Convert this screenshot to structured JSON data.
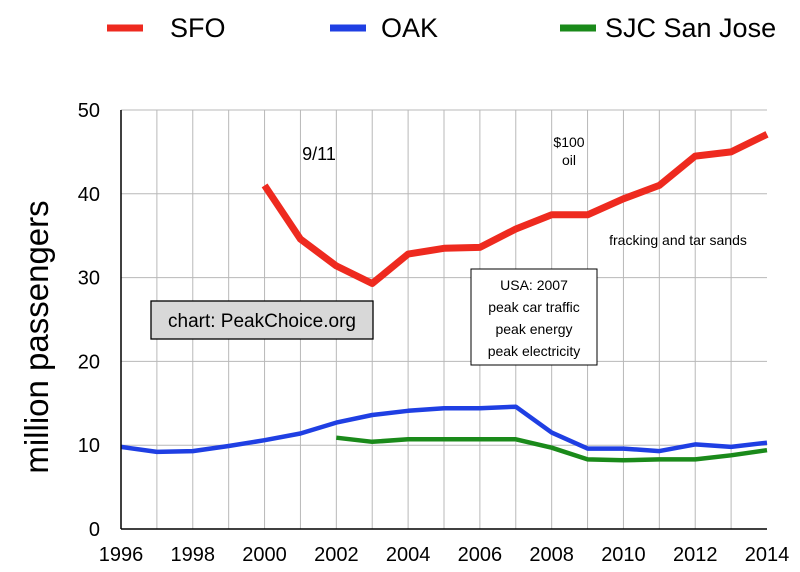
{
  "chart_data": {
    "type": "line",
    "title": "",
    "xlabel": "",
    "ylabel": "million passengers",
    "xlim": [
      1996,
      2014
    ],
    "ylim": [
      0,
      50
    ],
    "x_ticks": [
      "1996",
      "1998",
      "2000",
      "2002",
      "2004",
      "2006",
      "2008",
      "2010",
      "2012",
      "2014"
    ],
    "y_ticks": [
      "0",
      "10",
      "20",
      "30",
      "40",
      "50"
    ],
    "grid": "on",
    "legend_position": "top",
    "series": [
      {
        "name": "SFO",
        "color": "#ee2a1f",
        "x": [
          2000,
          2001,
          2002,
          2003,
          2004,
          2005,
          2006,
          2007,
          2008,
          2009,
          2010,
          2011,
          2012,
          2013,
          2014
        ],
        "y": [
          41.0,
          34.6,
          31.4,
          29.3,
          32.8,
          33.5,
          33.6,
          35.8,
          37.5,
          37.5,
          39.4,
          41.0,
          44.5,
          45.0,
          47.1
        ]
      },
      {
        "name": "OAK",
        "color": "#1f3fe3",
        "x": [
          1996,
          1997,
          1998,
          1999,
          2000,
          2001,
          2002,
          2003,
          2004,
          2005,
          2006,
          2007,
          2008,
          2009,
          2010,
          2011,
          2012,
          2013,
          2014
        ],
        "y": [
          9.8,
          9.2,
          9.3,
          9.9,
          10.6,
          11.4,
          12.7,
          13.6,
          14.1,
          14.4,
          14.4,
          14.6,
          11.5,
          9.6,
          9.6,
          9.3,
          10.1,
          9.8,
          10.3
        ]
      },
      {
        "name": "SJC San Jose",
        "color": "#1a8a1a",
        "x": [
          2002,
          2003,
          2004,
          2005,
          2006,
          2007,
          2008,
          2009,
          2010,
          2011,
          2012,
          2013,
          2014
        ],
        "y": [
          10.9,
          10.4,
          10.7,
          10.7,
          10.7,
          10.7,
          9.7,
          8.3,
          8.2,
          8.3,
          8.3,
          8.8,
          9.4
        ]
      }
    ],
    "annotations": [
      {
        "id": "sept11",
        "lines": [
          "9/11"
        ]
      },
      {
        "id": "oil",
        "lines": [
          "$100",
          "oil"
        ]
      },
      {
        "id": "fracking",
        "lines": [
          "fracking and tar sands"
        ]
      },
      {
        "id": "usa2007",
        "lines": [
          "USA: 2007",
          "peak car traffic",
          "peak energy",
          "peak electricity"
        ]
      },
      {
        "id": "credit",
        "lines": [
          "chart: PeakChoice.org"
        ]
      }
    ]
  }
}
